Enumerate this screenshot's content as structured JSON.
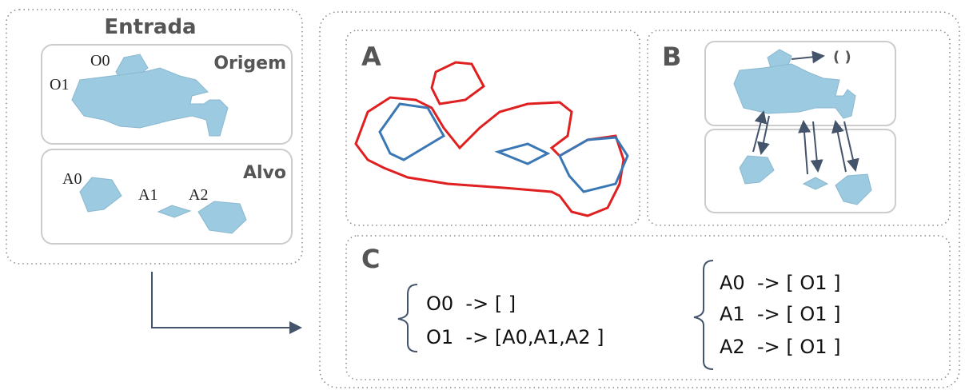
{
  "input_panel": {
    "title": "Entrada",
    "origin_label": "Origem",
    "target_label": "Alvo",
    "origin_shapes": [
      "O0",
      "O1"
    ],
    "target_shapes": [
      "A0",
      "A1",
      "A2"
    ]
  },
  "panels": {
    "a": {
      "label": "A"
    },
    "b": {
      "label": "B",
      "empty_list": "( )"
    },
    "c": {
      "label": "C",
      "origin_mapping": [
        "O0  -> [ ]",
        "O1  -> [A0,A1,A2 ]"
      ],
      "target_mapping": [
        "A0  -> [ O1 ]",
        "A1  -> [ O1 ]",
        "A2  -> [ O1 ]"
      ]
    }
  }
}
